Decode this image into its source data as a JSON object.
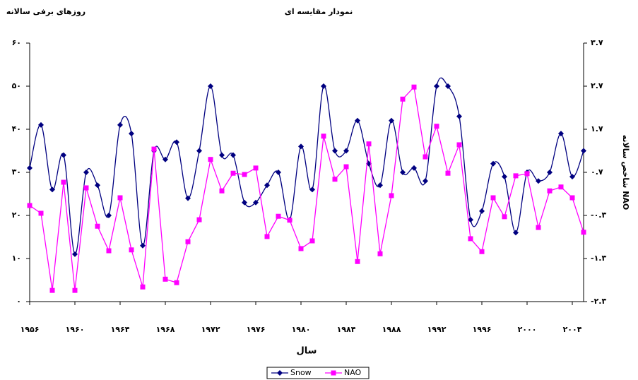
{
  "chart_data": {
    "type": "line",
    "title": "نمودار مقایسه ای",
    "y_label": "روزهای برفی سالانه",
    "y2_label": "شاخص سالانه NAO",
    "x_label": "سال",
    "x": [
      1956,
      1957,
      1958,
      1959,
      1960,
      1961,
      1962,
      1963,
      1964,
      1965,
      1966,
      1967,
      1968,
      1969,
      1970,
      1971,
      1972,
      1973,
      1974,
      1975,
      1976,
      1977,
      1978,
      1979,
      1980,
      1981,
      1982,
      1983,
      1984,
      1985,
      1986,
      1987,
      1988,
      1989,
      1990,
      1991,
      1992,
      1993,
      1994,
      1995,
      1996,
      1997,
      1998,
      1999,
      2000,
      2001,
      2002,
      2003,
      2004,
      2005
    ],
    "series": [
      {
        "name": "Snow",
        "color": "#000080",
        "marker": "diamond",
        "smooth": true,
        "values": [
          31,
          41,
          26,
          34,
          11,
          30,
          27,
          20,
          41,
          39,
          13,
          35,
          33,
          37,
          24,
          35,
          50,
          34,
          34,
          23,
          23,
          27,
          30,
          19,
          36,
          26,
          50,
          35,
          35,
          42,
          32,
          27,
          42,
          30,
          31,
          28,
          50,
          50,
          43,
          19,
          21,
          32,
          29,
          16,
          30,
          28,
          30,
          39,
          29,
          35
        ]
      },
      {
        "name": "NAO",
        "color": "#ff00ff",
        "marker": "square",
        "axis": "y2",
        "values": [
          -0.07,
          -0.25,
          -2.04,
          0.47,
          -2.04,
          0.34,
          -0.55,
          -1.12,
          0.11,
          -1.1,
          -1.96,
          1.24,
          -1.78,
          -1.86,
          -0.91,
          -0.4,
          1.0,
          0.27,
          0.68,
          0.65,
          0.8,
          -0.79,
          -0.32,
          -0.41,
          -1.07,
          -0.89,
          1.54,
          0.54,
          0.83,
          -1.37,
          1.36,
          -1.19,
          0.16,
          2.4,
          2.68,
          1.06,
          1.77,
          0.68,
          1.34,
          -0.84,
          -1.14,
          0.11,
          -0.33,
          0.62,
          0.67,
          -0.58,
          0.27,
          0.36,
          0.11,
          -0.69
        ]
      }
    ],
    "xlim": [
      1956,
      2005
    ],
    "xticks": [
      {
        "value": 1956,
        "label": "۱۹۵۶"
      },
      {
        "value": 1960,
        "label": "۱۹۶۰"
      },
      {
        "value": 1964,
        "label": "۱۹۶۴"
      },
      {
        "value": 1968,
        "label": "۱۹۶۸"
      },
      {
        "value": 1972,
        "label": "۱۹۷۲"
      },
      {
        "value": 1976,
        "label": "۱۹۷۶"
      },
      {
        "value": 1980,
        "label": "۱۹۸۰"
      },
      {
        "value": 1984,
        "label": "۱۹۸۴"
      },
      {
        "value": 1988,
        "label": "۱۹۸۸"
      },
      {
        "value": 1992,
        "label": "۱۹۹۲"
      },
      {
        "value": 1996,
        "label": "۱۹۹۶"
      },
      {
        "value": 2000,
        "label": "۲۰۰۰"
      },
      {
        "value": 2004,
        "label": "۲۰۰۴"
      }
    ],
    "ylim": [
      0,
      60
    ],
    "yticks": [
      {
        "value": 0,
        "label": "۰"
      },
      {
        "value": 10,
        "label": "۱۰"
      },
      {
        "value": 20,
        "label": "۲۰"
      },
      {
        "value": 30,
        "label": "۳۰"
      },
      {
        "value": 40,
        "label": "۴۰"
      },
      {
        "value": 50,
        "label": "۵۰"
      },
      {
        "value": 60,
        "label": "۶۰"
      }
    ],
    "y2lim": [
      -2.3,
      3.7
    ],
    "y2ticks": [
      {
        "value": -2.3,
        "label": "-۲.۳"
      },
      {
        "value": -1.3,
        "label": "-۱.۳"
      },
      {
        "value": -0.3,
        "label": "-۰.۳"
      },
      {
        "value": 0.7,
        "label": "۰.۷"
      },
      {
        "value": 1.7,
        "label": "۱.۷"
      },
      {
        "value": 2.7,
        "label": "۲.۷"
      },
      {
        "value": 3.7,
        "label": "۳.۷"
      }
    ],
    "grid": false,
    "legend": "bottom"
  }
}
